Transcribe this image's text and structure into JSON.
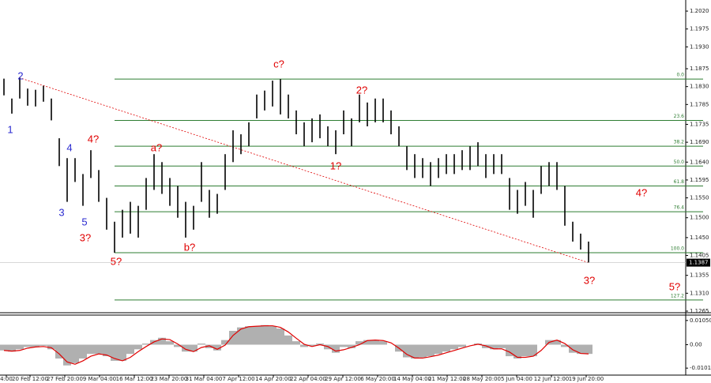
{
  "chart_data": {
    "type": "ohlc-wave",
    "price_panel": {
      "ylim": [
        1.1257,
        1.2038
      ],
      "yticks": [
        {
          "value": 1.202,
          "label": "1.2020"
        },
        1.1975,
        {
          "value": 1.193,
          "label": "1.1930"
        },
        1.1875,
        {
          "value": 1.183,
          "label": "1.1830"
        },
        1.1785,
        1.1735,
        {
          "value": 1.169,
          "label": "1.1690"
        },
        {
          "value": 1.164,
          "label": "1.1640"
        },
        1.1595,
        {
          "value": 1.155,
          "label": "1.1550"
        },
        {
          "value": 1.15,
          "label": "1.1500"
        },
        {
          "value": 1.145,
          "label": "1.1450"
        },
        1.1405,
        1.1355,
        {
          "value": 1.131,
          "label": "1.1310"
        },
        1.1265
      ],
      "bar_color": "#000000",
      "high": [
        1.185,
        1.18,
        1.1852,
        1.1825,
        1.1822,
        1.1832,
        1.18,
        1.17,
        1.165,
        1.165,
        1.161,
        1.167,
        1.162,
        1.155,
        1.149,
        1.152,
        1.154,
        1.153,
        1.16,
        1.166,
        1.164,
        1.16,
        1.158,
        1.154,
        1.153,
        1.164,
        1.157,
        1.156,
        1.166,
        1.172,
        1.171,
        1.174,
        1.181,
        1.182,
        1.1845,
        1.1849,
        1.181,
        1.177,
        1.174,
        1.175,
        1.176,
        1.173,
        1.172,
        1.177,
        1.175,
        1.181,
        1.179,
        1.18,
        1.18,
        1.177,
        1.173,
        1.168,
        1.166,
        1.165,
        1.164,
        1.165,
        1.166,
        1.166,
        1.167,
        1.168,
        1.169,
        1.166,
        1.166,
        1.166,
        1.16,
        1.157,
        1.159,
        1.157,
        1.163,
        1.164,
        1.164,
        1.158,
        1.149,
        1.146,
        1.144
      ],
      "low": [
        1.1808,
        1.1762,
        1.18,
        1.1782,
        1.178,
        1.1792,
        1.1745,
        1.163,
        1.154,
        1.159,
        1.153,
        1.16,
        1.154,
        1.147,
        1.1412,
        1.145,
        1.146,
        1.145,
        1.152,
        1.157,
        1.156,
        1.153,
        1.15,
        1.145,
        1.147,
        1.154,
        1.15,
        1.151,
        1.157,
        1.164,
        1.166,
        1.168,
        1.175,
        1.177,
        1.178,
        1.176,
        1.175,
        1.171,
        1.168,
        1.169,
        1.17,
        1.168,
        1.166,
        1.171,
        1.168,
        1.174,
        1.173,
        1.174,
        1.174,
        1.171,
        1.168,
        1.162,
        1.16,
        1.16,
        1.158,
        1.16,
        1.161,
        1.161,
        1.162,
        1.162,
        1.163,
        1.16,
        1.161,
        1.161,
        1.152,
        1.151,
        1.153,
        1.15,
        1.156,
        1.158,
        1.157,
        1.148,
        1.144,
        1.142,
        1.1387
      ],
      "current_price": 1.1387,
      "fib_color": "#2e7d32",
      "fib_levels": [
        {
          "label": "0.0",
          "price": 1.1849
        },
        {
          "label": "23.6",
          "price": 1.1745
        },
        {
          "label": "38.2",
          "price": 1.168
        },
        {
          "label": "50.0",
          "price": 1.163
        },
        {
          "label": "61.8",
          "price": 1.158
        },
        {
          "label": "76.4",
          "price": 1.1515
        },
        {
          "label": "100.0",
          "price": 1.1412
        },
        {
          "label": "127.2",
          "price": 1.1293
        }
      ],
      "wave_labels": [
        {
          "text": "1",
          "color": "#2a2ad0"
        },
        {
          "text": "2",
          "color": "#2a2ad0"
        },
        {
          "text": "3",
          "color": "#2a2ad0"
        },
        {
          "text": "4",
          "color": "#2a2ad0"
        },
        {
          "text": "5",
          "color": "#2a2ad0"
        },
        {
          "text": "4?",
          "color": "#e00000"
        },
        {
          "text": "3?",
          "color": "#e00000"
        },
        {
          "text": "5?",
          "color": "#e00000"
        },
        {
          "text": "a?",
          "color": "#e00000"
        },
        {
          "text": "b?",
          "color": "#e00000"
        },
        {
          "text": "c?",
          "color": "#e00000"
        },
        {
          "text": "1?",
          "color": "#e00000"
        },
        {
          "text": "2?",
          "color": "#e00000"
        },
        {
          "text": "3?",
          "color": "#e00000"
        },
        {
          "text": "4?",
          "color": "#e00000"
        },
        {
          "text": "5?",
          "color": "#e00000"
        }
      ]
    },
    "oscillator_panel": {
      "ylim": [
        -0.0132,
        0.0125
      ],
      "yticks": [
        {
          "value": 0.0105,
          "label": "0.01050"
        },
        {
          "value": 0,
          "label": "0.00"
        },
        {
          "value": -0.01017,
          "label": "-0.01017"
        }
      ],
      "histogram_color": "#b0b0b0",
      "signal_color": "#e00000",
      "histogram": [
        -0.0025,
        -0.003,
        -0.002,
        -0.001,
        -0.001,
        -0.0005,
        -0.002,
        -0.006,
        -0.009,
        -0.008,
        -0.006,
        -0.004,
        -0.004,
        -0.005,
        -0.007,
        -0.007,
        -0.004,
        -0.002,
        0.0005,
        0.002,
        0.003,
        0.0015,
        -0.001,
        -0.003,
        -0.003,
        0.0005,
        -0.0015,
        -0.0025,
        0.002,
        0.006,
        0.0075,
        0.008,
        0.008,
        0.0085,
        0.008,
        0.007,
        0.004,
        0.0015,
        -0.001,
        -0.0005,
        0.0005,
        -0.002,
        -0.0035,
        -0.001,
        -0.0015,
        0.0015,
        0.002,
        0.002,
        0.0015,
        0,
        -0.003,
        -0.0055,
        -0.006,
        -0.0055,
        -0.005,
        -0.004,
        -0.003,
        -0.002,
        -0.001,
        0,
        0.0005,
        -0.0015,
        -0.002,
        -0.0015,
        -0.005,
        -0.006,
        -0.005,
        -0.005,
        0,
        0.002,
        0.002,
        -0.001,
        -0.0035,
        -0.004,
        -0.004
      ],
      "signal": [
        -0.0025,
        -0.0028,
        -0.0025,
        -0.0015,
        -0.001,
        -0.0008,
        -0.0013,
        -0.004,
        -0.0075,
        -0.0085,
        -0.007,
        -0.005,
        -0.004,
        -0.0045,
        -0.006,
        -0.007,
        -0.0055,
        -0.003,
        -0.0008,
        0.0012,
        0.0025,
        0.0022,
        0.0003,
        -0.002,
        -0.003,
        -0.0012,
        -0.0005,
        -0.002,
        -0.0002,
        0.004,
        0.0068,
        0.0078,
        0.008,
        0.0082,
        0.0082,
        0.0075,
        0.0055,
        0.0028,
        0.0002,
        -0.0008,
        0,
        -0.0008,
        -0.0028,
        -0.0022,
        -0.0012,
        0,
        0.0018,
        0.002,
        0.0018,
        0.0008,
        -0.0015,
        -0.0042,
        -0.0058,
        -0.0058,
        -0.0052,
        -0.0045,
        -0.0035,
        -0.0025,
        -0.0015,
        -0.0005,
        0.0002,
        -0.0005,
        -0.0018,
        -0.0018,
        -0.0032,
        -0.0055,
        -0.0055,
        -0.005,
        -0.0025,
        0.001,
        0.002,
        0.0005,
        -0.0022,
        -0.0038,
        -0.004
      ]
    },
    "categories": [
      "4:00",
      "20 Feb 12:00",
      "27 Feb 20:00",
      "9 Mar 04:00",
      "16 Mar 12:00",
      "23 Mar 20:00",
      "31 Mar 04:00",
      "7 Apr 12:00",
      "14 Apr 20:00",
      "22 Apr 04:00",
      "29 Apr 12:00",
      "6 May 20:00",
      "14 May 04:00",
      "21 May 12:00",
      "28 May 20:00",
      "5 Jun 04:00",
      "12 Jun 12:00",
      "19 Jun 20:00"
    ]
  }
}
